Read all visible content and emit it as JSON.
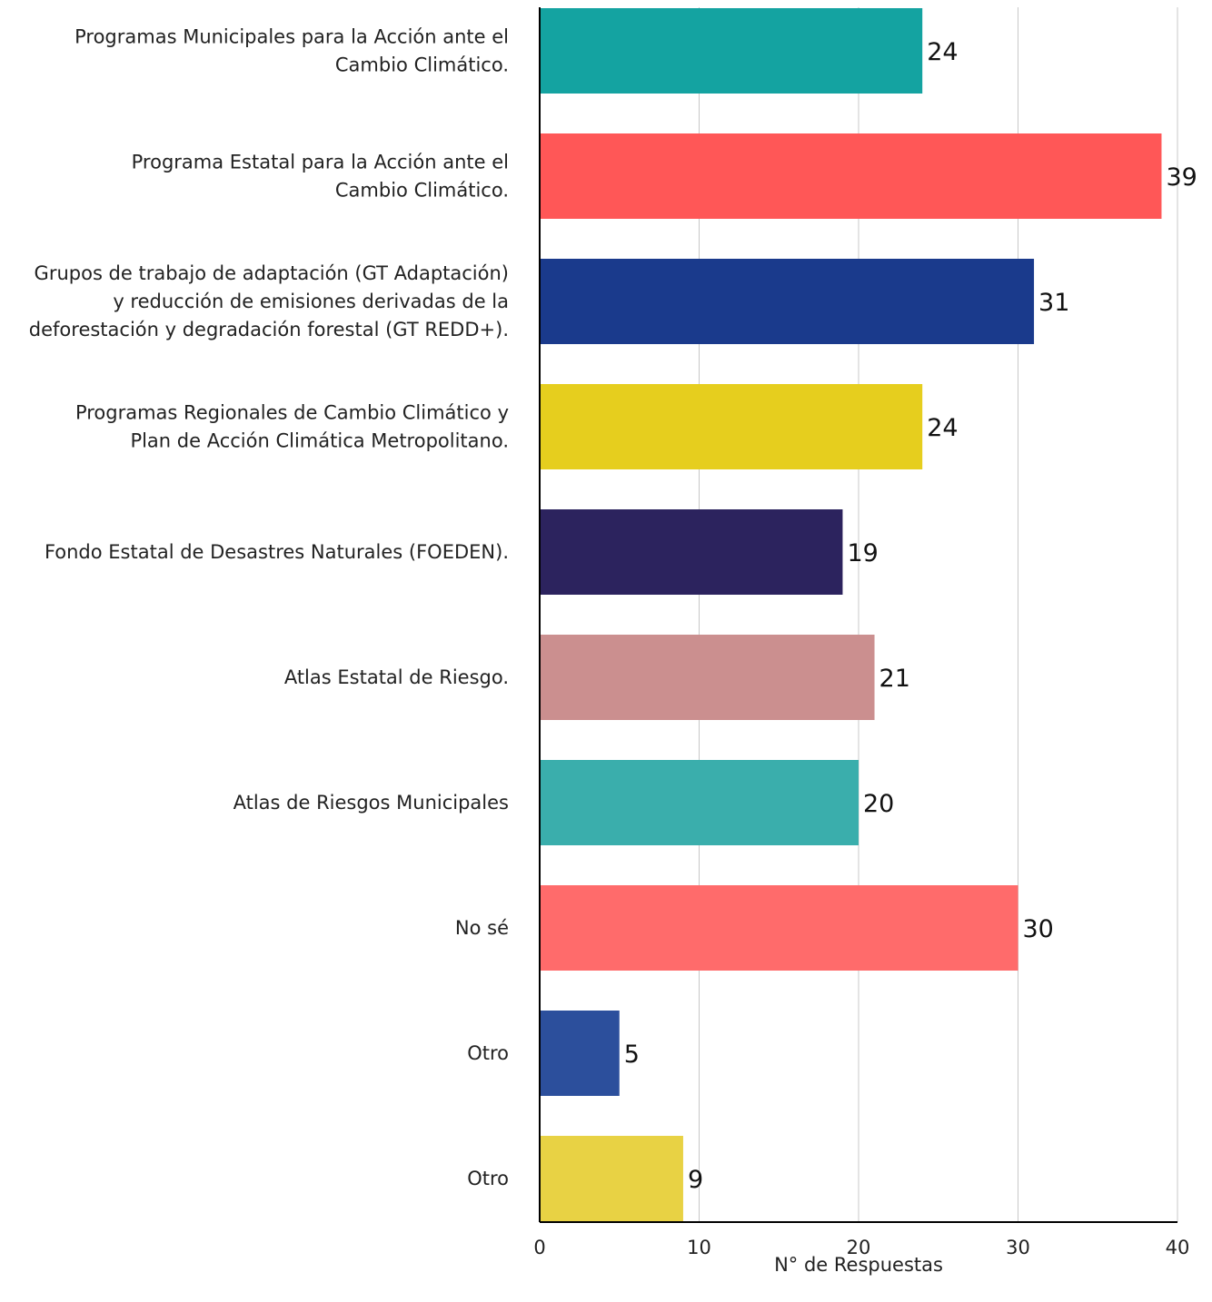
{
  "chart_data": {
    "type": "bar",
    "orientation": "horizontal",
    "categories": [
      [
        "Programas Municipales para la Acción ante el",
        "Cambio Climático."
      ],
      [
        "Programa Estatal para la Acción ante el",
        "Cambio Climático."
      ],
      [
        "Grupos de trabajo de adaptación (GT Adaptación)",
        "y reducción de emisiones derivadas de la",
        "deforestación y degradación forestal (GT REDD+)."
      ],
      [
        "Programas Regionales de Cambio Climático y",
        "Plan de Acción Climática Metropolitano."
      ],
      [
        "Fondo Estatal de Desastres Naturales (FOEDEN)."
      ],
      [
        "Atlas Estatal de Riesgo."
      ],
      [
        "Atlas de Riesgos Municipales"
      ],
      [
        "No sé"
      ],
      [
        "Otro"
      ],
      [
        "Otro"
      ]
    ],
    "values": [
      24,
      39,
      31,
      24,
      19,
      21,
      20,
      30,
      5,
      9
    ],
    "colors": [
      "#14a3a1",
      "#ff5757",
      "#1a3a8c",
      "#e6ce1e",
      "#2c235e",
      "#cb8f8f",
      "#3aaeac",
      "#ff6b6b",
      "#2c4f9c",
      "#e8d244"
    ],
    "xlim": [
      0,
      40
    ],
    "xticks": [
      "0",
      "10",
      "20",
      "30",
      "40"
    ],
    "xlabel": "N° de Respuestas",
    "ylabel": "",
    "title": "",
    "grid": "vertical"
  }
}
